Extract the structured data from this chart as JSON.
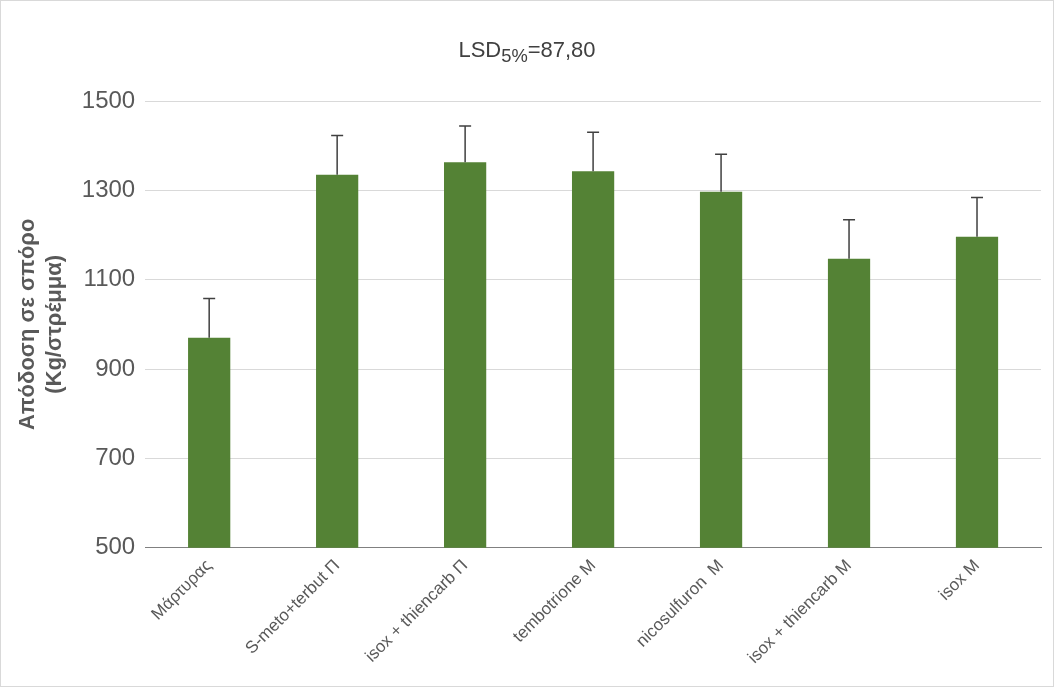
{
  "chart_data": {
    "type": "bar",
    "title": "LSD$_{5%}$=87,80",
    "ylabel": "Απόδοση σε σπόρο\n(Kg/στρέμμα)",
    "categories": [
      "Μάρτυρας",
      "S-meto+terbut Π",
      "isox + thiencarb Π",
      "tembotrione M",
      "nicosulfuron  M",
      "isox + thiencarb M",
      "isox M"
    ],
    "values": [
      970,
      1335,
      1363,
      1343,
      1297,
      1147,
      1196
    ],
    "errors": [
      [
        970,
        1058
      ],
      [
        1335,
        1423
      ],
      [
        1363,
        1444
      ],
      [
        1343,
        1430
      ],
      [
        1297,
        1381
      ],
      [
        1147,
        1234
      ],
      [
        1196,
        1284
      ]
    ],
    "color": "#548235",
    "ylim": [
      500,
      1500
    ],
    "yticks": [
      500,
      700,
      900,
      1100,
      1300,
      1500
    ],
    "grid": "y"
  }
}
